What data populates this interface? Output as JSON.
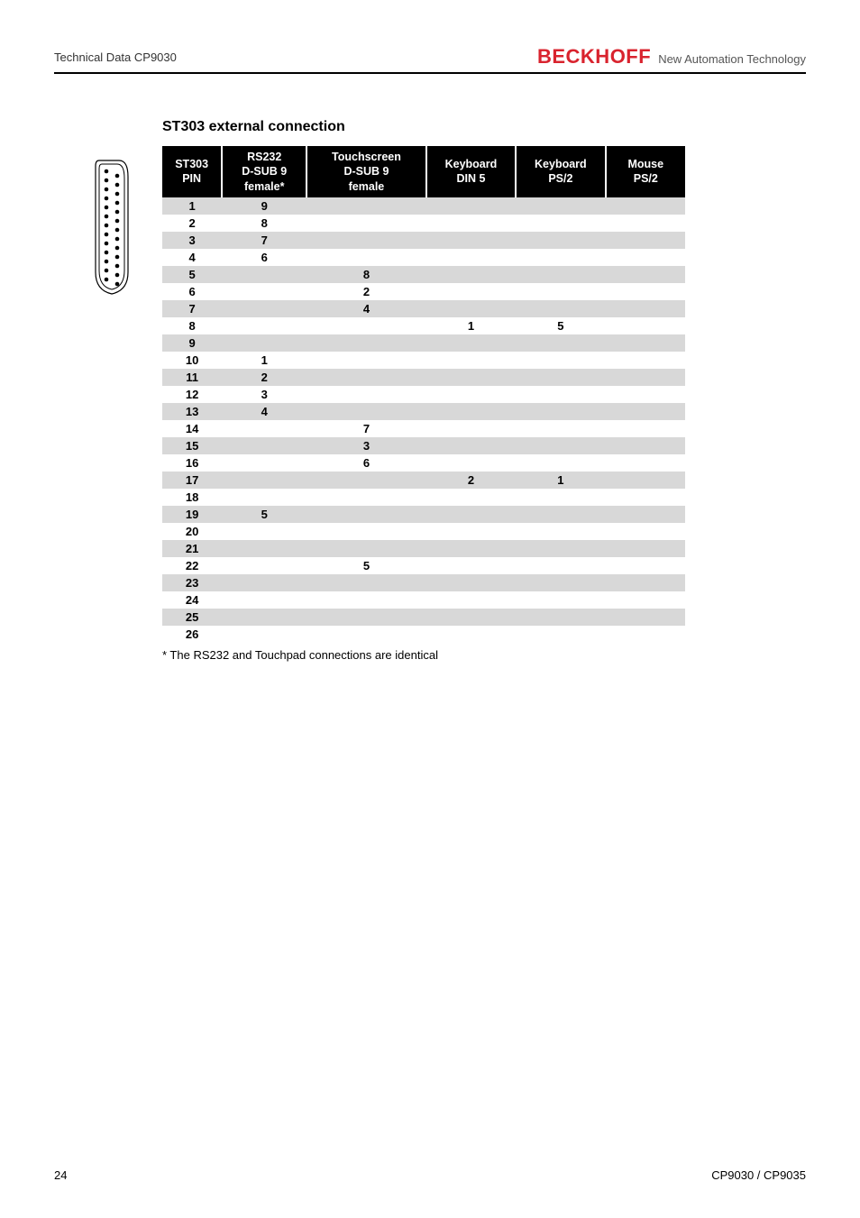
{
  "header": {
    "left": "Technical Data CP9030",
    "brand": "BECKHOFF",
    "tagline": "New Automation Technology"
  },
  "section_title": "ST303 external connection",
  "table": {
    "columns": [
      "ST303\nPIN",
      "RS232\nD-SUB 9\nfemale*",
      "Touchscreen\nD-SUB 9\nfemale",
      "Keyboard\nDIN 5",
      "Keyboard\nPS/2",
      "Mouse\nPS/2"
    ],
    "rows": [
      [
        "1",
        "9",
        "",
        "",
        "",
        ""
      ],
      [
        "2",
        "8",
        "",
        "",
        "",
        ""
      ],
      [
        "3",
        "7",
        "",
        "",
        "",
        ""
      ],
      [
        "4",
        "6",
        "",
        "",
        "",
        ""
      ],
      [
        "5",
        "",
        "8",
        "",
        "",
        ""
      ],
      [
        "6",
        "",
        "2",
        "",
        "",
        ""
      ],
      [
        "7",
        "",
        "4",
        "",
        "",
        ""
      ],
      [
        "8",
        "",
        "",
        "1",
        "5",
        ""
      ],
      [
        "9",
        "",
        "",
        "",
        "",
        ""
      ],
      [
        "10",
        "1",
        "",
        "",
        "",
        ""
      ],
      [
        "11",
        "2",
        "",
        "",
        "",
        ""
      ],
      [
        "12",
        "3",
        "",
        "",
        "",
        ""
      ],
      [
        "13",
        "4",
        "",
        "",
        "",
        ""
      ],
      [
        "14",
        "",
        "7",
        "",
        "",
        ""
      ],
      [
        "15",
        "",
        "3",
        "",
        "",
        ""
      ],
      [
        "16",
        "",
        "6",
        "",
        "",
        ""
      ],
      [
        "17",
        "",
        "",
        "2",
        "1",
        ""
      ],
      [
        "18",
        "",
        "",
        "",
        "",
        ""
      ],
      [
        "19",
        "5",
        "",
        "",
        "",
        ""
      ],
      [
        "20",
        "",
        "",
        "",
        "",
        ""
      ],
      [
        "21",
        "",
        "",
        "",
        "",
        ""
      ],
      [
        "22",
        "",
        "5",
        "",
        "",
        ""
      ],
      [
        "23",
        "",
        "",
        "",
        "",
        ""
      ],
      [
        "24",
        "",
        "",
        "",
        "",
        ""
      ],
      [
        "25",
        "",
        "",
        "",
        "",
        ""
      ],
      [
        "26",
        "",
        "",
        "",
        "",
        ""
      ]
    ]
  },
  "footnote": "* The RS232 and Touchpad connections are identical",
  "footer": {
    "page": "24",
    "doc": "CP9030 / CP9035"
  },
  "colors": {
    "brand": "#d9232e",
    "header_bg": "#000000",
    "header_fg": "#ffffff",
    "row_odd": "#d8d8d8",
    "row_even": "#ffffff"
  }
}
